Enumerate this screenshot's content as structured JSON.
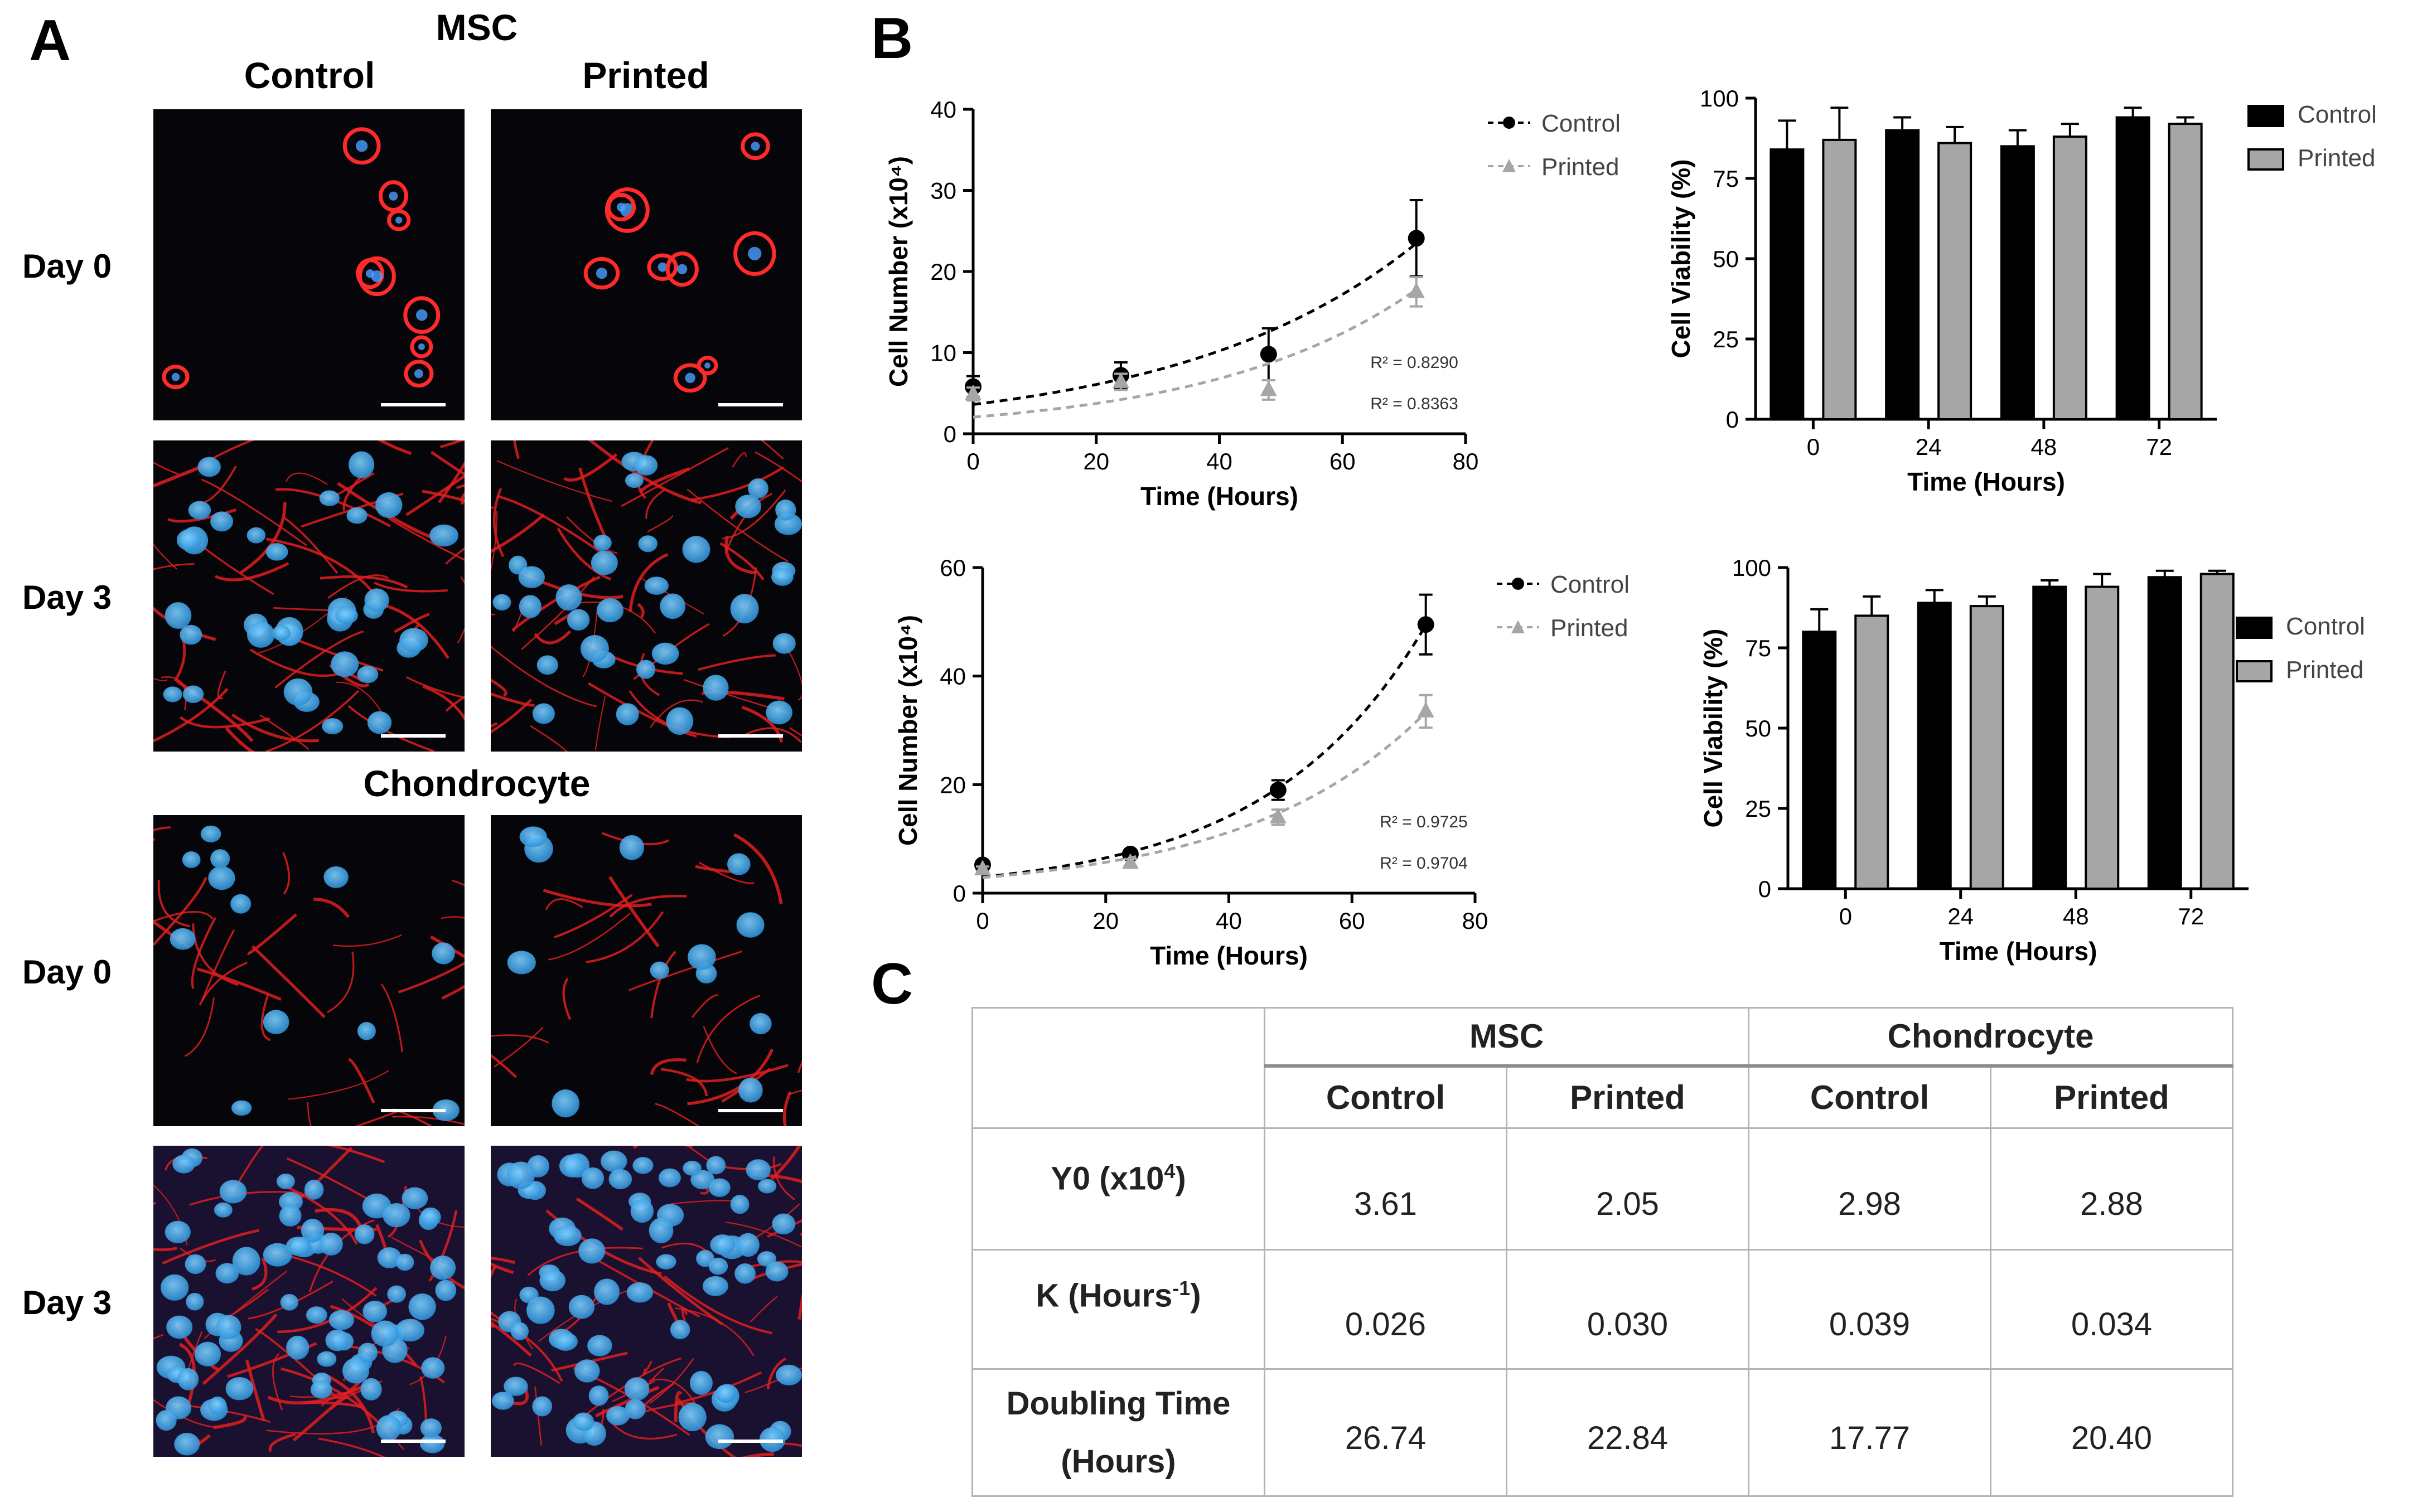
{
  "panels": {
    "a": {
      "letter": "A",
      "groups": [
        {
          "title": "MSC"
        },
        {
          "title": "Chondrocyte"
        }
      ],
      "columns": [
        "Control",
        "Printed"
      ],
      "rows": [
        "Day 0",
        "Day 3",
        "Day 0",
        "Day 3"
      ]
    },
    "b": {
      "letter": "B"
    },
    "c": {
      "letter": "C"
    }
  },
  "colors": {
    "control": "#000000",
    "printed": "#a6a6a6",
    "actin_red": "#e01e1e",
    "nucleus_blue": "#3aa0e0"
  },
  "chart_data": [
    {
      "type": "scatter",
      "ylabel": "Cell Number (x10⁴)",
      "xlabel": "Time (Hours)",
      "xlim": [
        0,
        80
      ],
      "ylim": [
        0,
        40
      ],
      "xticks": [
        0,
        20,
        40,
        60,
        80
      ],
      "yticks": [
        0,
        10,
        20,
        30,
        40
      ],
      "legend_position": "top-right",
      "series": [
        {
          "name": "Control",
          "marker": "circle",
          "x": [
            0,
            24,
            48,
            72
          ],
          "y": [
            5.8,
            7.2,
            9.8,
            24.1
          ],
          "err": [
            1.3,
            1.6,
            3.2,
            4.7
          ],
          "fit": {
            "y0": 3.61,
            "k": 0.026
          },
          "r2_label": "R² = 0.8290"
        },
        {
          "name": "Printed",
          "marker": "triangle",
          "x": [
            0,
            24,
            48,
            72
          ],
          "y": [
            4.9,
            6.4,
            5.4,
            17.5
          ],
          "err": [
            0.8,
            1.0,
            1.2,
            1.8
          ],
          "fit": {
            "y0": 2.05,
            "k": 0.03
          },
          "r2_label": "R² = 0.8363"
        }
      ]
    },
    {
      "type": "bar",
      "ylabel": "Cell Viability (%)",
      "xlabel": "Time (Hours)",
      "ylim": [
        0,
        100
      ],
      "yticks": [
        0,
        25,
        50,
        75,
        100
      ],
      "categories": [
        "0",
        "24",
        "48",
        "72"
      ],
      "legend_position": "top-right",
      "series": [
        {
          "name": "Control",
          "values": [
            84,
            90,
            85,
            94
          ],
          "err": [
            9,
            4,
            5,
            3
          ]
        },
        {
          "name": "Printed",
          "values": [
            87,
            86,
            88,
            92
          ],
          "err": [
            10,
            5,
            4,
            2
          ]
        }
      ]
    },
    {
      "type": "scatter",
      "ylabel": "Cell Number (x10⁴)",
      "xlabel": "Time (Hours)",
      "xlim": [
        0,
        80
      ],
      "ylim": [
        0,
        60
      ],
      "xticks": [
        0,
        20,
        40,
        60,
        80
      ],
      "yticks": [
        0,
        20,
        40,
        60
      ],
      "legend_position": "top-right",
      "series": [
        {
          "name": "Control",
          "marker": "circle",
          "x": [
            0,
            24,
            48,
            72
          ],
          "y": [
            5.2,
            7.2,
            19,
            49.5
          ],
          "err": [
            0.6,
            0.8,
            1.8,
            5.5
          ],
          "fit": {
            "y0": 2.98,
            "k": 0.039
          },
          "r2_label": "R² = 0.9725"
        },
        {
          "name": "Printed",
          "marker": "triangle",
          "x": [
            0,
            24,
            48,
            72
          ],
          "y": [
            4.4,
            5.6,
            14,
            33.5
          ],
          "err": [
            0.5,
            0.7,
            1.4,
            3.0
          ],
          "fit": {
            "y0": 2.88,
            "k": 0.034
          },
          "r2_label": "R² = 0.9704"
        }
      ]
    },
    {
      "type": "bar",
      "ylabel": "Cell Viability (%)",
      "xlabel": "Time (Hours)",
      "ylim": [
        0,
        100
      ],
      "yticks": [
        0,
        25,
        50,
        75,
        100
      ],
      "categories": [
        "0",
        "24",
        "48",
        "72"
      ],
      "legend_position": "top-right",
      "series": [
        {
          "name": "Control",
          "values": [
            80,
            89,
            94,
            97
          ],
          "err": [
            7,
            4,
            2,
            2
          ]
        },
        {
          "name": "Printed",
          "values": [
            85,
            88,
            94,
            98
          ],
          "err": [
            6,
            3,
            4,
            1
          ]
        }
      ]
    },
    {
      "type": "table",
      "groups": [
        "MSC",
        "Chondrocyte"
      ],
      "subcolumns": [
        "Control",
        "Printed",
        "Control",
        "Printed"
      ],
      "rows": [
        {
          "label_main": "Y0 (x10",
          "label_sup": "4",
          "label_tail": ")",
          "values": [
            "3.61",
            "2.05",
            "2.98",
            "2.88"
          ]
        },
        {
          "label_main": "K (Hours",
          "label_sup": "-1",
          "label_tail": ")",
          "values": [
            "0.026",
            "0.030",
            "0.039",
            "0.034"
          ]
        },
        {
          "label_main": "Doubling Time",
          "label_main2": "(Hours)",
          "values": [
            "26.74",
            "22.84",
            "17.77",
            "20.40"
          ]
        }
      ]
    }
  ]
}
